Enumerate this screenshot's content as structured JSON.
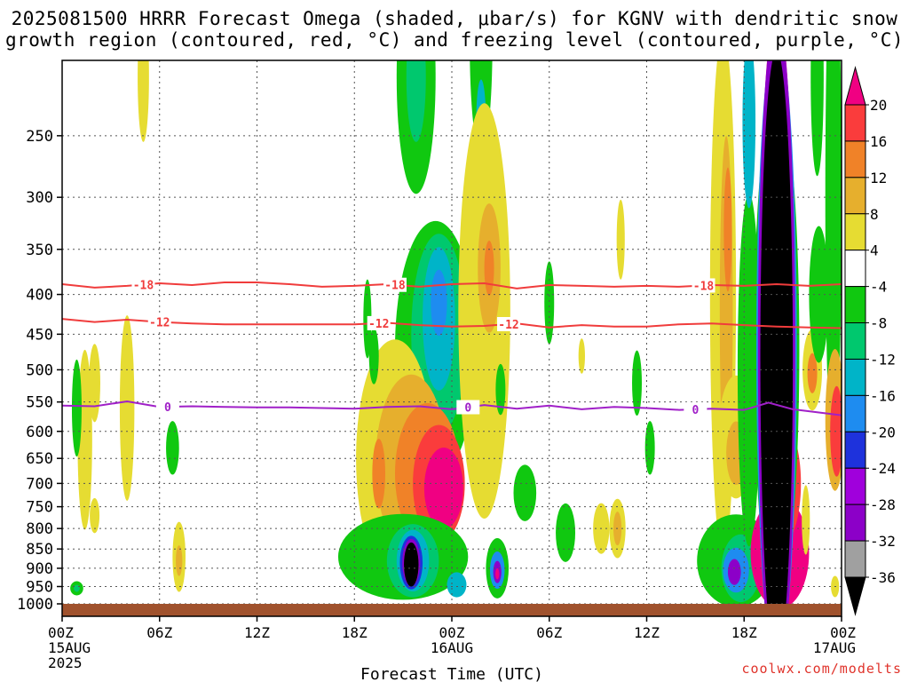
{
  "title": {
    "line1": "2025081500 HRRR Forecast Omega (shaded, μbar/s) for KGNV with dendritic snow",
    "line2": "growth region (contoured, red, °C) and freezing level (contoured, purple, °C)"
  },
  "watermark": "coolwx.com/modelts",
  "chart_data": {
    "type": "heatmap",
    "xlabel": "Forecast Time (UTC)",
    "ylabel": "",
    "x_range_hours": [
      0,
      48
    ],
    "y_axis": "pressure (hPa), log scale, inverted",
    "y_range": [
      1000,
      200
    ],
    "grid": true,
    "x_ticks": [
      {
        "h": 0,
        "label": "00Z",
        "sub": "15AUG",
        "sub2": "2025"
      },
      {
        "h": 6,
        "label": "06Z"
      },
      {
        "h": 12,
        "label": "12Z"
      },
      {
        "h": 18,
        "label": "18Z"
      },
      {
        "h": 24,
        "label": "00Z",
        "sub": "16AUG"
      },
      {
        "h": 30,
        "label": "06Z"
      },
      {
        "h": 36,
        "label": "12Z"
      },
      {
        "h": 42,
        "label": "18Z"
      },
      {
        "h": 48,
        "label": "00Z",
        "sub": "17AUG"
      }
    ],
    "y_ticks": [
      250,
      300,
      350,
      400,
      450,
      500,
      550,
      600,
      650,
      700,
      750,
      800,
      850,
      900,
      950,
      1000
    ],
    "colorbar": {
      "levels": [
        -36,
        -32,
        -28,
        -24,
        -20,
        -16,
        -12,
        -8,
        -4,
        4,
        8,
        12,
        16,
        20
      ],
      "labels": [
        "20",
        "16",
        "12",
        "8",
        "4",
        "-4",
        "-8",
        "-12",
        "-16",
        "-20",
        "-24",
        "-28",
        "-32",
        "-36"
      ],
      "colors": [
        "#000000",
        "#a0a0a0",
        "#8c00c8",
        "#a000dc",
        "#1e32dc",
        "#1e8cf0",
        "#00b4c8",
        "#00c86e",
        "#10c810",
        "#ffffff",
        "#e6dc32",
        "#e6af2d",
        "#f08228",
        "#fa3c3c",
        "#f00082"
      ]
    },
    "contours": [
      {
        "label": "-18",
        "color": "#f03c3c",
        "label_hours": [
          5,
          20.5,
          39.5
        ],
        "points": [
          [
            0,
            388
          ],
          [
            2,
            392
          ],
          [
            4,
            390
          ],
          [
            6,
            387
          ],
          [
            8,
            389
          ],
          [
            10,
            386
          ],
          [
            12,
            386
          ],
          [
            14,
            388
          ],
          [
            16,
            391
          ],
          [
            18,
            390
          ],
          [
            20,
            388
          ],
          [
            22,
            391
          ],
          [
            24,
            388
          ],
          [
            26,
            387
          ],
          [
            28,
            393
          ],
          [
            30,
            389
          ],
          [
            32,
            390
          ],
          [
            34,
            391
          ],
          [
            36,
            390
          ],
          [
            38,
            391
          ],
          [
            40,
            389
          ],
          [
            42,
            390
          ],
          [
            44,
            388
          ],
          [
            46,
            390
          ],
          [
            48,
            388
          ]
        ]
      },
      {
        "label": "-12",
        "color": "#f03c3c",
        "label_hours": [
          6,
          19.5,
          27.5
        ],
        "points": [
          [
            0,
            430
          ],
          [
            2,
            434
          ],
          [
            4,
            431
          ],
          [
            6,
            434
          ],
          [
            8,
            436
          ],
          [
            10,
            437
          ],
          [
            12,
            437
          ],
          [
            14,
            437
          ],
          [
            16,
            437
          ],
          [
            18,
            437
          ],
          [
            20,
            435
          ],
          [
            22,
            438
          ],
          [
            24,
            440
          ],
          [
            26,
            439
          ],
          [
            28,
            436
          ],
          [
            30,
            441
          ],
          [
            32,
            438
          ],
          [
            34,
            440
          ],
          [
            36,
            440
          ],
          [
            38,
            437
          ],
          [
            40,
            436
          ],
          [
            42,
            438
          ],
          [
            44,
            440
          ],
          [
            46,
            441
          ],
          [
            48,
            442
          ]
        ]
      },
      {
        "label": "0",
        "color": "#a020c8",
        "label_hours": [
          6.5,
          25,
          39
        ],
        "points": [
          [
            0,
            556
          ],
          [
            2,
            557
          ],
          [
            4,
            549
          ],
          [
            6,
            558
          ],
          [
            8,
            557
          ],
          [
            10,
            558
          ],
          [
            12,
            559
          ],
          [
            14,
            559
          ],
          [
            16,
            560
          ],
          [
            18,
            561
          ],
          [
            20,
            558
          ],
          [
            22,
            557
          ],
          [
            24,
            562
          ],
          [
            26,
            555
          ],
          [
            28,
            561
          ],
          [
            30,
            556
          ],
          [
            32,
            562
          ],
          [
            34,
            558
          ],
          [
            36,
            560
          ],
          [
            38,
            563
          ],
          [
            40,
            561
          ],
          [
            42,
            563
          ],
          [
            43.5,
            551
          ],
          [
            45,
            562
          ],
          [
            48,
            572
          ]
        ]
      }
    ],
    "regions": [
      {
        "h": 5.0,
        "p": 210,
        "rh": 0.35,
        "rp": 40,
        "c": "#e6dc32"
      },
      {
        "h": 1.4,
        "p": 615,
        "rh": 0.45,
        "rp": 160,
        "c": "#e6dc32"
      },
      {
        "h": 2.0,
        "p": 520,
        "rh": 0.35,
        "rp": 60,
        "c": "#e6dc32"
      },
      {
        "h": 0.9,
        "p": 560,
        "rh": 0.3,
        "rp": 80,
        "c": "#10c810"
      },
      {
        "h": 0.9,
        "p": 955,
        "rh": 0.4,
        "rp": 20,
        "c": "#10c810"
      },
      {
        "h": 0.9,
        "p": 955,
        "rh": 0.18,
        "rp": 10,
        "c": "#00c86e"
      },
      {
        "h": 2.0,
        "p": 770,
        "rh": 0.3,
        "rp": 40,
        "c": "#e6dc32"
      },
      {
        "h": 4.0,
        "p": 560,
        "rh": 0.45,
        "rp": 150,
        "c": "#e6dc32"
      },
      {
        "h": 6.8,
        "p": 630,
        "rh": 0.4,
        "rp": 50,
        "c": "#10c810"
      },
      {
        "h": 7.2,
        "p": 870,
        "rh": 0.4,
        "rp": 90,
        "c": "#e6dc32"
      },
      {
        "h": 7.2,
        "p": 880,
        "rh": 0.2,
        "rp": 40,
        "c": "#e6af2d"
      },
      {
        "h": 23.0,
        "p": 470,
        "rh": 2.5,
        "rp": 170,
        "c": "#10c810"
      },
      {
        "h": 23.2,
        "p": 450,
        "rh": 1.7,
        "rp": 130,
        "c": "#00c86e"
      },
      {
        "h": 23.2,
        "p": 430,
        "rh": 1.0,
        "rp": 90,
        "c": "#00b4c8"
      },
      {
        "h": 23.2,
        "p": 410,
        "rh": 0.5,
        "rp": 40,
        "c": "#1e8cf0"
      },
      {
        "h": 21.8,
        "p": 210,
        "rh": 1.2,
        "rp": 70,
        "c": "#10c810"
      },
      {
        "h": 21.8,
        "p": 210,
        "rh": 0.6,
        "rp": 40,
        "c": "#00c86e"
      },
      {
        "h": 25.8,
        "p": 190,
        "rh": 0.7,
        "rp": 60,
        "c": "#10c810"
      },
      {
        "h": 25.8,
        "p": 240,
        "rh": 0.3,
        "rp": 30,
        "c": "#00b4c8"
      },
      {
        "h": 26.0,
        "p": 420,
        "rh": 1.6,
        "rp": 230,
        "c": "#e6dc32"
      },
      {
        "h": 26.3,
        "p": 370,
        "rh": 0.7,
        "rp": 70,
        "c": "#e6af2d"
      },
      {
        "h": 26.3,
        "p": 370,
        "rh": 0.3,
        "rp": 30,
        "c": "#f08228"
      },
      {
        "h": 20.5,
        "p": 650,
        "rh": 2.4,
        "rp": 220,
        "c": "#e6dc32"
      },
      {
        "h": 21.5,
        "p": 660,
        "rh": 2.2,
        "rp": 170,
        "c": "#e6af2d"
      },
      {
        "h": 22.5,
        "p": 680,
        "rh": 2.0,
        "rp": 140,
        "c": "#f08228"
      },
      {
        "h": 23.2,
        "p": 700,
        "rh": 1.6,
        "rp": 120,
        "c": "#fa3c3c"
      },
      {
        "h": 23.5,
        "p": 710,
        "rh": 1.2,
        "rp": 85,
        "c": "#f00082"
      },
      {
        "h": 19.5,
        "p": 680,
        "rh": 0.4,
        "rp": 70,
        "c": "#f08228"
      },
      {
        "h": 21.0,
        "p": 870,
        "rh": 4.0,
        "rp": 110,
        "c": "#10c810"
      },
      {
        "h": 21.6,
        "p": 880,
        "rh": 1.6,
        "rp": 95,
        "c": "#00c86e"
      },
      {
        "h": 21.6,
        "p": 880,
        "rh": 1.0,
        "rp": 80,
        "c": "#00b4c8"
      },
      {
        "h": 21.5,
        "p": 885,
        "rh": 0.7,
        "rp": 70,
        "c": "#1e32dc"
      },
      {
        "h": 21.5,
        "p": 885,
        "rh": 0.55,
        "rp": 62,
        "c": "#8c00c8"
      },
      {
        "h": 21.5,
        "p": 890,
        "rh": 0.45,
        "rp": 58,
        "c": "#000000"
      },
      {
        "h": 18.8,
        "p": 430,
        "rh": 0.25,
        "rp": 50,
        "c": "#10c810"
      },
      {
        "h": 19.2,
        "p": 480,
        "rh": 0.3,
        "rp": 40,
        "c": "#10c810"
      },
      {
        "h": 24.3,
        "p": 945,
        "rh": 0.6,
        "rp": 35,
        "c": "#00b4c8"
      },
      {
        "h": 26.8,
        "p": 900,
        "rh": 0.7,
        "rp": 80,
        "c": "#10c810"
      },
      {
        "h": 26.8,
        "p": 905,
        "rh": 0.45,
        "rp": 50,
        "c": "#1e8cf0"
      },
      {
        "h": 26.8,
        "p": 910,
        "rh": 0.25,
        "rp": 30,
        "c": "#8c00c8"
      },
      {
        "h": 26.8,
        "p": 915,
        "rh": 0.12,
        "rp": 15,
        "c": "#f00082"
      },
      {
        "h": 28.5,
        "p": 720,
        "rh": 0.7,
        "rp": 60,
        "c": "#10c810"
      },
      {
        "h": 27.0,
        "p": 530,
        "rh": 0.3,
        "rp": 40,
        "c": "#10c810"
      },
      {
        "h": 31.0,
        "p": 810,
        "rh": 0.6,
        "rp": 70,
        "c": "#10c810"
      },
      {
        "h": 30.0,
        "p": 410,
        "rh": 0.3,
        "rp": 50,
        "c": "#10c810"
      },
      {
        "h": 32.0,
        "p": 480,
        "rh": 0.2,
        "rp": 25,
        "c": "#e6dc32"
      },
      {
        "h": 33.2,
        "p": 800,
        "rh": 0.5,
        "rp": 60,
        "c": "#e6dc32"
      },
      {
        "h": 34.2,
        "p": 800,
        "rh": 0.5,
        "rp": 70,
        "c": "#e6dc32"
      },
      {
        "h": 34.2,
        "p": 800,
        "rh": 0.25,
        "rp": 40,
        "c": "#e6af2d"
      },
      {
        "h": 34.4,
        "p": 340,
        "rh": 0.25,
        "rp": 40,
        "c": "#e6dc32"
      },
      {
        "h": 35.4,
        "p": 520,
        "rh": 0.3,
        "rp": 50,
        "c": "#10c810"
      },
      {
        "h": 36.2,
        "p": 630,
        "rh": 0.3,
        "rp": 50,
        "c": "#10c810"
      },
      {
        "h": 40.7,
        "p": 400,
        "rh": 0.8,
        "rp": 260,
        "c": "#e6dc32"
      },
      {
        "h": 40.9,
        "p": 420,
        "rh": 0.4,
        "rp": 200,
        "c": "#e6af2d"
      },
      {
        "h": 41.0,
        "p": 330,
        "rh": 0.25,
        "rp": 60,
        "c": "#f08228"
      },
      {
        "h": 41.5,
        "p": 610,
        "rh": 1.1,
        "rp": 110,
        "c": "#e6dc32"
      },
      {
        "h": 41.5,
        "p": 640,
        "rh": 0.6,
        "rp": 60,
        "c": "#e6af2d"
      },
      {
        "h": 41.5,
        "p": 880,
        "rh": 2.4,
        "rp": 120,
        "c": "#10c810"
      },
      {
        "h": 41.8,
        "p": 900,
        "rh": 1.2,
        "rp": 90,
        "c": "#00c86e"
      },
      {
        "h": 41.5,
        "p": 905,
        "rh": 0.8,
        "rp": 60,
        "c": "#1e8cf0"
      },
      {
        "h": 41.4,
        "p": 910,
        "rh": 0.4,
        "rp": 35,
        "c": "#8c00c8"
      },
      {
        "h": 42.3,
        "p": 500,
        "rh": 0.7,
        "rp": 240,
        "c": "#10c810"
      },
      {
        "h": 42.3,
        "p": 240,
        "rh": 0.4,
        "rp": 60,
        "c": "#00b4c8"
      },
      {
        "h": 43.5,
        "p": 880,
        "rh": 0.9,
        "rp": 80,
        "c": "#e6dc32"
      },
      {
        "h": 44.2,
        "p": 860,
        "rh": 1.8,
        "rp": 140,
        "c": "#f00082"
      },
      {
        "h": 44.2,
        "p": 700,
        "rh": 1.3,
        "rp": 130,
        "c": "#fa3c3c"
      },
      {
        "h": 46.2,
        "p": 500,
        "rh": 0.6,
        "rp": 60,
        "c": "#e6dc32"
      },
      {
        "h": 46.2,
        "p": 505,
        "rh": 0.3,
        "rp": 30,
        "c": "#f08228"
      },
      {
        "h": 46.6,
        "p": 400,
        "rh": 0.6,
        "rp": 80,
        "c": "#10c810"
      },
      {
        "h": 46.5,
        "p": 210,
        "rh": 0.4,
        "rp": 60,
        "c": "#10c810"
      },
      {
        "h": 47.5,
        "p": 300,
        "rh": 0.5,
        "rp": 200,
        "c": "#10c810"
      },
      {
        "h": 47.6,
        "p": 580,
        "rh": 0.6,
        "rp": 120,
        "c": "#e6af2d"
      },
      {
        "h": 47.7,
        "p": 600,
        "rh": 0.4,
        "rp": 80,
        "c": "#fa3c3c"
      },
      {
        "h": 45.8,
        "p": 780,
        "rh": 0.25,
        "rp": 80,
        "c": "#e6dc32"
      },
      {
        "h": 47.6,
        "p": 950,
        "rh": 0.25,
        "rp": 30,
        "c": "#e6dc32"
      },
      {
        "h": 44.0,
        "p": 470,
        "rh": 1.1,
        "rp": 360,
        "c": "#f00082"
      },
      {
        "h": 44.0,
        "p": 470,
        "rh": 1.4,
        "rp": 300,
        "c": "#10c810"
      },
      {
        "h": 44.0,
        "p": 470,
        "rh": 1.25,
        "rp": 345,
        "c": "#1e8cf0"
      },
      {
        "h": 44.0,
        "p": 470,
        "rh": 1.15,
        "rp": 355,
        "c": "#8c00c8"
      },
      {
        "h": 44.0,
        "p": 480,
        "rh": 1.0,
        "rp": 345,
        "c": "#000000"
      }
    ]
  }
}
